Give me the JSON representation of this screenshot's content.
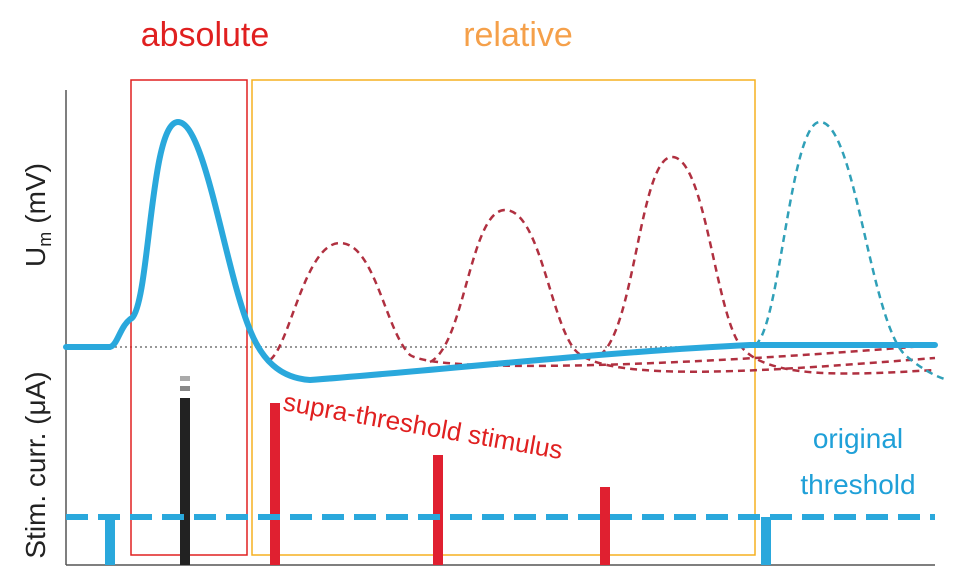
{
  "labels": {
    "absolute": "absolute",
    "relative": "relative",
    "y_top": {
      "main": "U",
      "sub": "m",
      "unit": "(mV)"
    },
    "y_bottom": "Stim. curr. (μA)",
    "stimulus": "supra-threshold stimulus",
    "threshold": [
      "original",
      "threshold"
    ]
  }
}
